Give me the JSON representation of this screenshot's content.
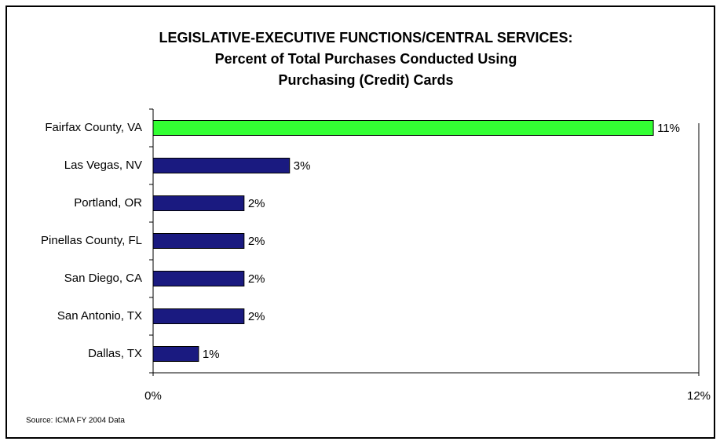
{
  "chart_data": {
    "type": "bar",
    "orientation": "horizontal",
    "title": [
      "LEGISLATIVE-EXECUTIVE FUNCTIONS/CENTRAL SERVICES:",
      "Percent of Total Purchases Conducted Using",
      "Purchasing (Credit) Cards"
    ],
    "categories": [
      "Fairfax County, VA",
      "Las Vegas, NV",
      "Portland, OR",
      "Pinellas County, FL",
      "San Diego, CA",
      "San Antonio, TX",
      "Dallas, TX"
    ],
    "values": [
      11,
      3,
      2,
      2,
      2,
      2,
      1
    ],
    "value_labels": [
      "11%",
      "3%",
      "2%",
      "2%",
      "2%",
      "2%",
      "1%"
    ],
    "colors": [
      "#33ff33",
      "#1a1a80",
      "#1a1a80",
      "#1a1a80",
      "#1a1a80",
      "#1a1a80",
      "#1a1a80"
    ],
    "xlim": [
      0,
      12
    ],
    "xticks": [
      {
        "value": 0,
        "label": "0%"
      },
      {
        "value": 12,
        "label": "12%"
      }
    ],
    "source": "Source: ICMA  FY 2004 Data"
  }
}
